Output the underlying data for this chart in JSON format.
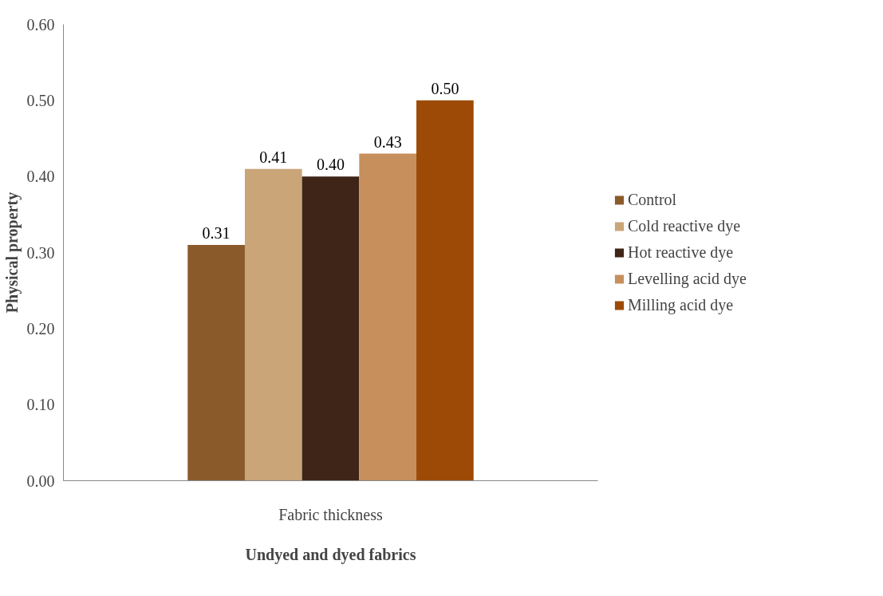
{
  "chart_data": {
    "type": "bar",
    "xlabel": "Undyed and dyed fabrics",
    "ylabel": "Physical property",
    "categories": [
      "Fabric thickness"
    ],
    "series": [
      {
        "name": "Control",
        "color": "#8b5a2b",
        "values": [
          0.31
        ],
        "value_labels": [
          "0.31"
        ]
      },
      {
        "name": "Cold reactive dye",
        "color": "#c9a578",
        "values": [
          0.41
        ],
        "value_labels": [
          "0.41"
        ]
      },
      {
        "name": "Hot reactive dye",
        "color": "#3e2518",
        "values": [
          0.4
        ],
        "value_labels": [
          "0.40"
        ]
      },
      {
        "name": "Levelling acid dye",
        "color": "#c68f5c",
        "values": [
          0.43
        ],
        "value_labels": [
          "0.43"
        ]
      },
      {
        "name": "Milling acid dye",
        "color": "#9c4a06",
        "values": [
          0.5
        ],
        "value_labels": [
          "0.50"
        ]
      }
    ],
    "ylim": [
      0,
      0.6
    ],
    "yticks": [
      {
        "value": 0,
        "label": "0.00"
      },
      {
        "value": 0.1,
        "label": "0.10"
      },
      {
        "value": 0.2,
        "label": "0.20"
      },
      {
        "value": 0.3,
        "label": "0.30"
      },
      {
        "value": 0.4,
        "label": "0.40"
      },
      {
        "value": 0.5,
        "label": "0.50"
      },
      {
        "value": 0.6,
        "label": "0.60"
      }
    ],
    "grid": false,
    "legend": "right"
  }
}
